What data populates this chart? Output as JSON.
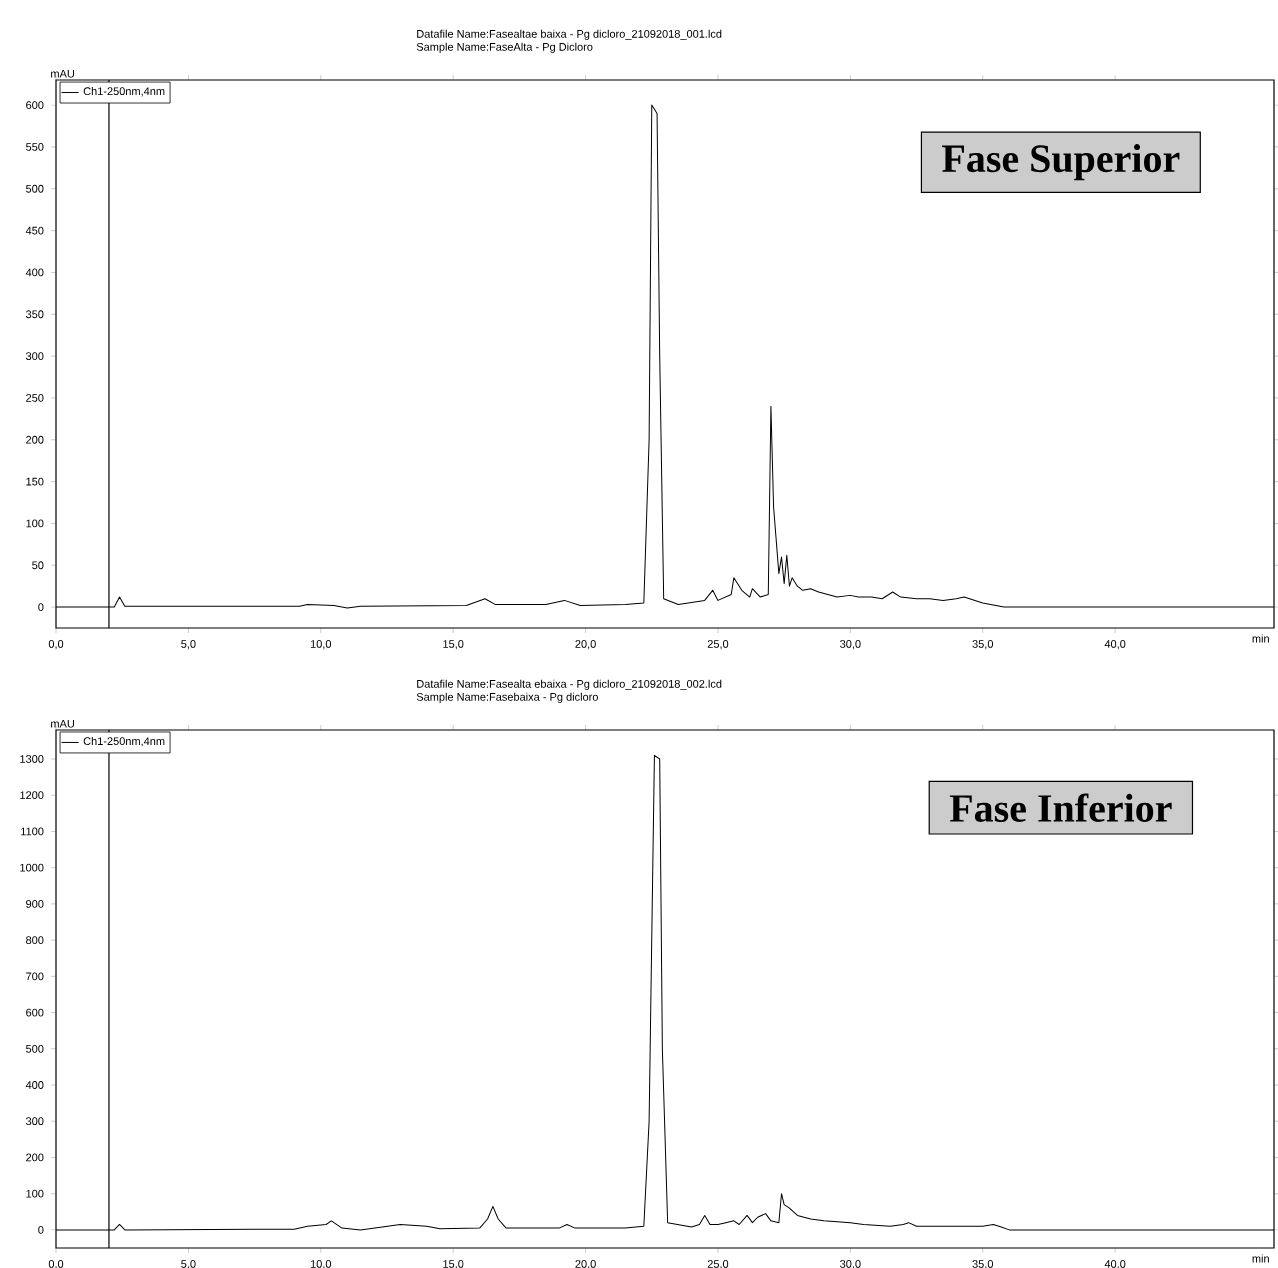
{
  "chart_data": [
    {
      "type": "line",
      "title": "Datafile Name:Fasealtae baixa - Pg dicloro_21092018_001.lcd",
      "subtitle": "Sample Name:FaseAlta - Pg Dicloro",
      "ylabel": "mAU",
      "xlabel": "min",
      "series": [
        {
          "name": "Ch1-250nm,4nm",
          "color": "#000000",
          "x": [
            0,
            2.2,
            2.4,
            2.6,
            9.2,
            9.5,
            10.5,
            11.0,
            11.5,
            15.5,
            16.2,
            16.6,
            18.5,
            19.2,
            19.8,
            21.5,
            22.2,
            22.4,
            22.5,
            22.7,
            22.8,
            22.95,
            23.5,
            24.5,
            24.8,
            25.0,
            25.5,
            25.6,
            25.9,
            26.2,
            26.3,
            26.6,
            26.9,
            27.0,
            27.1,
            27.2,
            27.3,
            27.4,
            27.5,
            27.6,
            27.7,
            27.8,
            28.0,
            28.2,
            28.5,
            28.8,
            29.5,
            30.0,
            30.3,
            30.8,
            31.2,
            31.6,
            31.9,
            32.5,
            33.0,
            33.5,
            34.0,
            34.3,
            35.0,
            35.8,
            46
          ],
          "values": [
            0,
            0,
            12,
            1,
            1,
            3,
            2,
            -1,
            1,
            2,
            10,
            3,
            3,
            8,
            2,
            3,
            5,
            200,
            600,
            590,
            300,
            10,
            3,
            8,
            20,
            8,
            15,
            35,
            20,
            12,
            22,
            12,
            15,
            240,
            120,
            80,
            40,
            60,
            28,
            62,
            25,
            35,
            25,
            20,
            22,
            18,
            12,
            14,
            12,
            12,
            10,
            18,
            12,
            10,
            10,
            8,
            10,
            12,
            5,
            0,
            0
          ]
        }
      ],
      "xlim": [
        0,
        46
      ],
      "ylim": [
        -25,
        630
      ],
      "xticks": [
        {
          "value": 0,
          "label": "0,0"
        },
        {
          "value": 5,
          "label": "5,0"
        },
        {
          "value": 10,
          "label": "10,0"
        },
        {
          "value": 15,
          "label": "15,0"
        },
        {
          "value": 20,
          "label": "20,0"
        },
        {
          "value": 25,
          "label": "25,0"
        },
        {
          "value": 30,
          "label": "30,0"
        },
        {
          "value": 35,
          "label": "35,0"
        },
        {
          "value": 40,
          "label": "40,0"
        }
      ],
      "yticks": [
        0,
        50,
        100,
        150,
        200,
        250,
        300,
        350,
        400,
        450,
        500,
        550,
        600
      ],
      "ref_lines": [
        {
          "axis": "x",
          "value": 2.0
        }
      ],
      "annotations": [
        "Fase Superior"
      ],
      "legend": "top left",
      "grid": false
    },
    {
      "type": "line",
      "title": "Datafile Name:Fasealta ebaixa - Pg dicloro_21092018_002.lcd",
      "subtitle": "Sample Name:Fasebaixa - Pg dicloro",
      "ylabel": "mAU",
      "xlabel": "min",
      "series": [
        {
          "name": "Ch1-250nm,4nm",
          "color": "#000000",
          "x": [
            0,
            2.2,
            2.4,
            2.6,
            9.0,
            9.5,
            10.2,
            10.4,
            10.8,
            11.5,
            12.0,
            13.0,
            14.0,
            14.5,
            16.0,
            16.3,
            16.5,
            16.7,
            17.0,
            18.0,
            19.0,
            19.3,
            19.6,
            21.5,
            22.2,
            22.4,
            22.6,
            22.8,
            22.9,
            23.1,
            24.0,
            24.3,
            24.5,
            24.7,
            25.0,
            25.3,
            25.6,
            25.8,
            26.1,
            26.3,
            26.5,
            26.8,
            27.0,
            27.3,
            27.4,
            27.5,
            27.7,
            28.0,
            28.5,
            29.0,
            30.0,
            30.5,
            31.5,
            32.0,
            32.2,
            32.5,
            35.0,
            35.4,
            35.7,
            36.0,
            46
          ],
          "values": [
            0,
            0,
            15,
            0,
            2,
            10,
            15,
            25,
            5,
            0,
            5,
            15,
            10,
            3,
            5,
            30,
            65,
            30,
            5,
            5,
            5,
            15,
            5,
            5,
            10,
            300,
            1310,
            1300,
            500,
            20,
            8,
            15,
            40,
            15,
            15,
            20,
            25,
            15,
            40,
            20,
            35,
            45,
            25,
            20,
            100,
            70,
            60,
            40,
            30,
            25,
            20,
            15,
            10,
            15,
            20,
            10,
            10,
            15,
            8,
            0,
            0
          ]
        }
      ],
      "xlim": [
        0,
        46
      ],
      "ylim": [
        -50,
        1380
      ],
      "xticks": [
        {
          "value": 0,
          "label": "0,0"
        },
        {
          "value": 5,
          "label": "5,0"
        },
        {
          "value": 10,
          "label": "10,0"
        },
        {
          "value": 15,
          "label": "15,0"
        },
        {
          "value": 20,
          "label": "20,0"
        },
        {
          "value": 25,
          "label": "25,0"
        },
        {
          "value": 30,
          "label": "30,0"
        },
        {
          "value": 35,
          "label": "35,0"
        },
        {
          "value": 40,
          "label": "40,0"
        }
      ],
      "yticks": [
        0,
        100,
        200,
        300,
        400,
        500,
        600,
        700,
        800,
        900,
        1000,
        1100,
        1200,
        1300
      ],
      "ref_lines": [
        {
          "axis": "x",
          "value": 2.0
        }
      ],
      "annotations": [
        "Fase Inferior"
      ],
      "legend": "top left",
      "grid": false
    }
  ]
}
